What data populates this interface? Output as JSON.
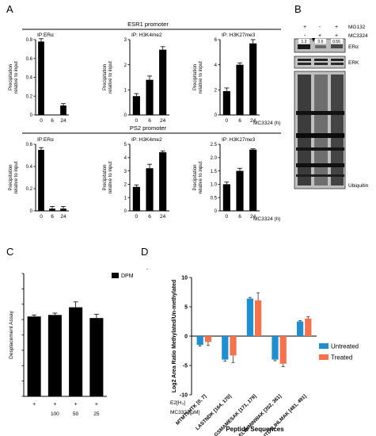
{
  "panel_labels": {
    "A": "A",
    "B": "B",
    "C": "C",
    "D": "D"
  },
  "panel_a": {
    "row1_header": "ESR1 promoter",
    "row2_header": "PS2 promoter",
    "ylabel": "Precipitation\nrelative to input",
    "xlabel": "MC3324 (h)"
  },
  "panel_b": {
    "treatments": [
      {
        "label": "MG132",
        "signs": [
          "+",
          "-",
          "+"
        ]
      },
      {
        "label": "MC3324",
        "signs": [
          "-",
          "+",
          "+"
        ]
      }
    ],
    "quant_values": [
      "1.3",
      "0.6",
      "0.56"
    ],
    "blot_labels": {
      "era": "ERα",
      "erk": "ERK",
      "ubiquitin": "Ubiquitin"
    }
  },
  "panel_c": {
    "ylabel": "Desplacement Assay",
    "legend": "DPM",
    "row_e2": {
      "signs": [
        "+",
        "+",
        "+",
        "+"
      ],
      "label": "E2[H₃]"
    },
    "row_mc": {
      "values": [
        "",
        "100",
        "50",
        "25"
      ],
      "label": "MC3324[μM]"
    }
  },
  "panel_d": {
    "ylabel": "Log2 Area Ratio Methylated/Un-methylated",
    "xlabel": "Peptide Sequences",
    "legend": [
      "Untreated",
      "Treated"
    ],
    "stray_mark": "-"
  },
  "colors": {
    "bar": "#000000",
    "untreated": "#1f8fd0",
    "treated": "#f4734d"
  },
  "chart_data": [
    {
      "type": "bar",
      "title": "IP:ERα",
      "categories": [
        "0",
        "6",
        "24"
      ],
      "values": [
        0.78,
        0.0,
        0.1
      ],
      "errors": [
        0.03,
        0.0,
        0.02
      ],
      "ylim": [
        0,
        0.8
      ],
      "ticks": [
        "0",
        "0.2",
        "0.4",
        "0.6",
        "0.8"
      ],
      "xlabel": "",
      "ylabel": "Precipitation relative to input"
    },
    {
      "type": "bar",
      "title": "IP: H3K4me2",
      "categories": [
        "0",
        "6",
        "24"
      ],
      "values": [
        0.75,
        1.4,
        2.6
      ],
      "errors": [
        0.1,
        0.15,
        0.12
      ],
      "ylim": [
        0,
        3
      ],
      "ticks": [
        "0",
        "1",
        "2",
        "3"
      ],
      "xlabel": "",
      "ylabel": "Precipitation relative to input"
    },
    {
      "type": "bar",
      "title": "IP: H3K27me3",
      "categories": [
        "0",
        "6",
        "24"
      ],
      "values": [
        1.9,
        4.0,
        5.7
      ],
      "errors": [
        0.25,
        0.15,
        0.3
      ],
      "ylim": [
        0,
        6
      ],
      "ticks": [
        "0",
        "2",
        "4",
        "6"
      ],
      "xlabel": "MC3324 (h)",
      "ylabel": "Precipitation relative to input"
    },
    {
      "type": "bar",
      "title": "IP:ERα",
      "categories": [
        "0",
        "6",
        "24"
      ],
      "values": [
        0.55,
        0.02,
        0.02
      ],
      "errors": [
        0.02,
        0.02,
        0.02
      ],
      "ylim": [
        0,
        0.6
      ],
      "ticks": [
        "0",
        "0.2",
        "0.4",
        "0.6"
      ],
      "xlabel": "",
      "ylabel": "Precipitation relative to input"
    },
    {
      "type": "bar",
      "title": "IP: H3K4me2",
      "categories": [
        "0",
        "6",
        "24"
      ],
      "values": [
        1.8,
        3.2,
        4.4
      ],
      "errors": [
        0.15,
        0.3,
        0.1
      ],
      "ylim": [
        0,
        5
      ],
      "ticks": [
        "0",
        "1",
        "2",
        "3",
        "4",
        "5"
      ],
      "xlabel": "",
      "ylabel": "Precipitation relative to input"
    },
    {
      "type": "bar",
      "title": "IP: H3K27me3",
      "categories": [
        "0",
        "6",
        "24"
      ],
      "values": [
        1.0,
        1.5,
        2.3
      ],
      "errors": [
        0.08,
        0.1,
        0.03
      ],
      "ylim": [
        0,
        2.5
      ],
      "ticks": [
        "0",
        "0.5",
        "1.0",
        "1.5",
        "2.0",
        "2.5"
      ],
      "xlabel": "MC3324 (h)",
      "ylabel": "Precipitation relative to input"
    },
    {
      "type": "bar",
      "title": "",
      "categories": [
        "1",
        "2",
        "3",
        "4"
      ],
      "values": [
        520,
        530,
        580,
        510
      ],
      "errors": [
        10,
        12,
        35,
        25
      ],
      "ylim": [
        0,
        800
      ],
      "ticks": [
        "0",
        "100",
        "200",
        "300",
        "400",
        "500",
        "600",
        "700",
        "800"
      ],
      "xlabel": "",
      "ylabel": "Desplacement Assay",
      "legend": "DPM"
    },
    {
      "type": "bar",
      "title": "",
      "categories": [
        "MTMTLHTK [0, 7]",
        "LASTNDK [164, 170]",
        "GSMAMESAK [171, 179]",
        "ELVHMINWAK [352, 361]",
        "ITDTLIHLMAK [481, 491]"
      ],
      "series": [
        {
          "name": "Untreated",
          "values": [
            -1.5,
            -4.0,
            6.4,
            -4.0,
            2.5
          ],
          "errors": [
            0.2,
            0.3,
            0.2,
            0.2,
            0.15
          ]
        },
        {
          "name": "Treated",
          "values": [
            -1.0,
            -3.3,
            6.1,
            -4.7,
            3.0
          ],
          "errors": [
            0.6,
            1.2,
            1.3,
            0.5,
            0.3
          ]
        }
      ],
      "ylim": [
        -10,
        10
      ],
      "ticks": [
        "-10",
        "-5",
        "0",
        "5",
        "10"
      ],
      "xlabel": "Peptide Sequences",
      "ylabel": "Log2 Area Ratio Methylated/Un-methylated"
    }
  ]
}
